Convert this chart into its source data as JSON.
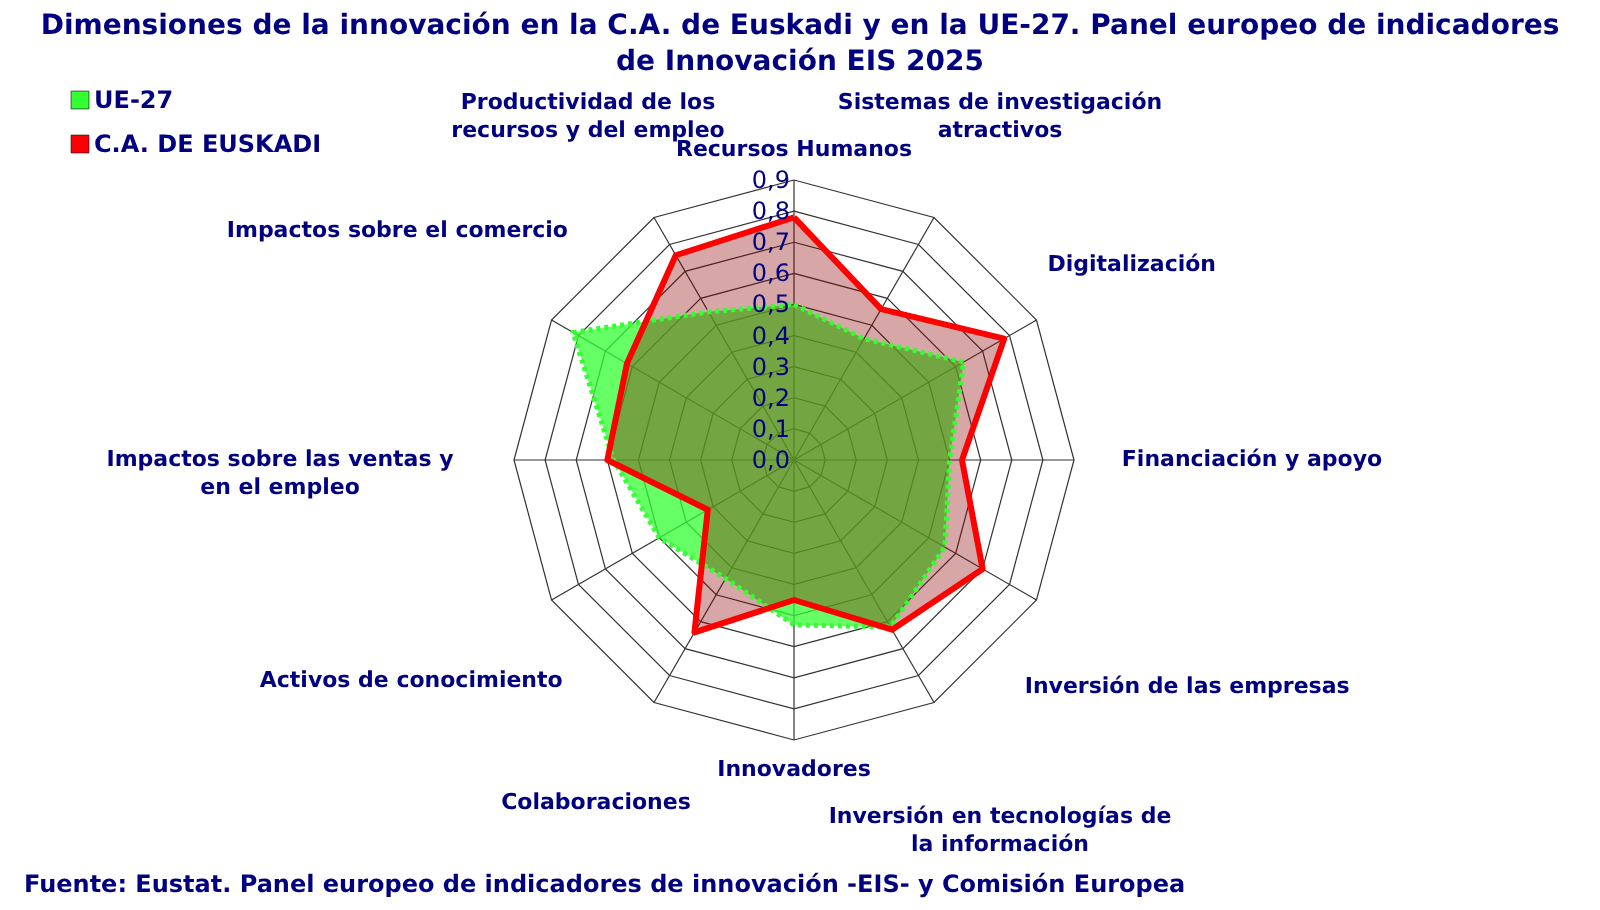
{
  "chart_data": {
    "type": "radar",
    "title": "Dimensiones de la innovación en la C.A. de Euskadi y en la UE-27. Panel europeo de indicadores de Innovación EIS 2025",
    "categories": [
      "Recursos Humanos",
      "Sistemas de investigación atractivos",
      "Digitalización",
      "Financiación y apoyo",
      "Inversión de las empresas",
      "Inversión en tecnologías de la información",
      "Innovadores",
      "Colaboraciones",
      "Activos de conocimiento",
      "Impactos sobre las ventas y en el empleo",
      "Impactos sobre el comercio",
      "Productividad de los recursos y del empleo"
    ],
    "series": [
      {
        "name": "UE-27",
        "color": "#33ff33",
        "line_style": "dotted",
        "values": [
          0.5,
          0.45,
          0.63,
          0.5,
          0.56,
          0.62,
          0.53,
          0.44,
          0.5,
          0.58,
          0.82,
          0.55
        ]
      },
      {
        "name": "C.A. DE EUSKADI",
        "color": "#ff0000",
        "line_style": "solid",
        "values": [
          0.78,
          0.56,
          0.78,
          0.54,
          0.7,
          0.63,
          0.45,
          0.64,
          0.32,
          0.6,
          0.62,
          0.76
        ]
      }
    ],
    "ylim": [
      0,
      0.9
    ],
    "yticks": [
      {
        "value": 0,
        "label": "0,0"
      },
      {
        "value": 0.1,
        "label": "0,1"
      },
      {
        "value": 0.2,
        "label": "0,2"
      },
      {
        "value": 0.3,
        "label": "0,3"
      },
      {
        "value": 0.4,
        "label": "0,4"
      },
      {
        "value": 0.5,
        "label": "0,5"
      },
      {
        "value": 0.6,
        "label": "0,6"
      },
      {
        "value": 0.7,
        "label": "0,7"
      },
      {
        "value": 0.8,
        "label": "0,8"
      },
      {
        "value": 0.9,
        "label": "0,9"
      }
    ],
    "grid": true,
    "legend": "top left",
    "marker": "none",
    "annotations": [
      "Fuente: Eustat. Panel europeo de indicadores de innovación -EIS- y Comisión Europea"
    ]
  }
}
